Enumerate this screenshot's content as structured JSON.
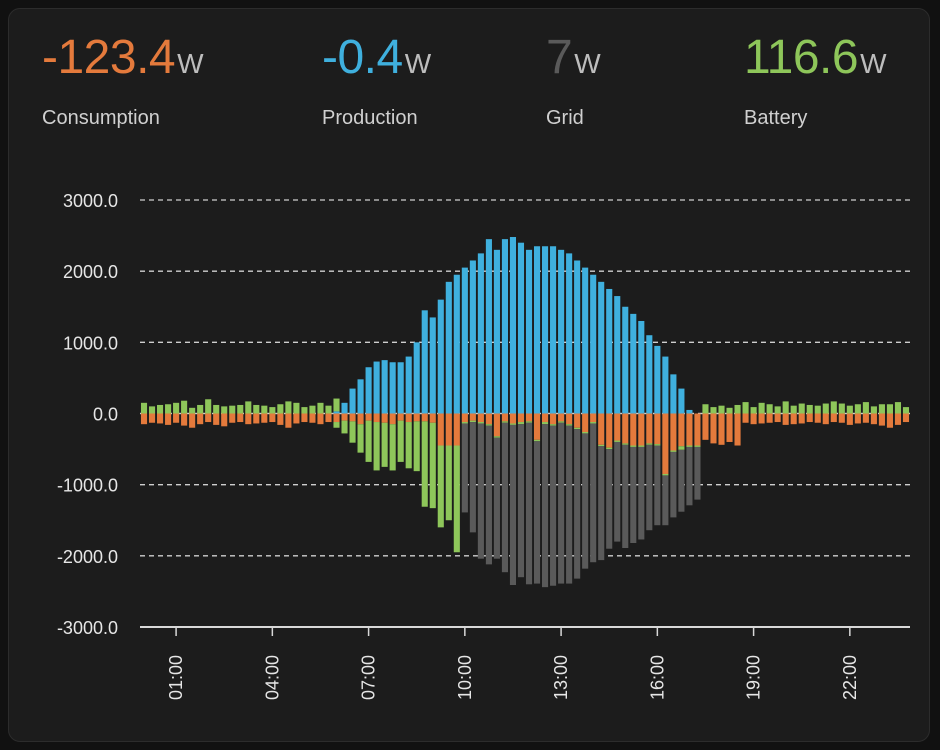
{
  "stats": [
    {
      "key": "consumption",
      "value": "-123.4",
      "unit": "W",
      "label": "Consumption",
      "color": "#e47a3c"
    },
    {
      "key": "production",
      "value": "-0.4",
      "unit": "W",
      "label": "Production",
      "color": "#3fb0de"
    },
    {
      "key": "grid",
      "value": "7",
      "unit": "W",
      "label": "Grid",
      "color": "#5a5a5a"
    },
    {
      "key": "battery",
      "value": "116.6",
      "unit": "W",
      "label": "Battery",
      "color": "#8ec65a"
    }
  ],
  "chart_data": {
    "type": "bar",
    "stacked": true,
    "grid": true,
    "ylim": [
      -3000,
      3000
    ],
    "y_ticks": [
      "3000.0",
      "2000.0",
      "1000.0",
      "0.0",
      "-1000.0",
      "-2000.0",
      "-3000.0"
    ],
    "x_ticks": [
      "01:00",
      "04:00",
      "07:00",
      "10:00",
      "13:00",
      "16:00",
      "19:00",
      "22:00"
    ],
    "x_start_hour": 0,
    "interval_minutes": 15,
    "series": [
      {
        "key": "production",
        "color": "#3fb0de",
        "values": [
          0,
          0,
          0,
          0,
          0,
          0,
          0,
          0,
          0,
          0,
          0,
          0,
          0,
          0,
          0,
          0,
          0,
          0,
          0,
          0,
          0,
          0,
          0,
          0,
          30,
          150,
          350,
          480,
          650,
          730,
          750,
          720,
          720,
          800,
          1000,
          1450,
          1350,
          1600,
          1850,
          1950,
          2050,
          2150,
          2250,
          2450,
          2300,
          2450,
          2480,
          2400,
          2300,
          2350,
          2350,
          2350,
          2300,
          2250,
          2150,
          2050,
          1950,
          1850,
          1750,
          1650,
          1500,
          1400,
          1300,
          1100,
          950,
          800,
          550,
          350,
          50,
          0,
          0,
          0,
          0,
          0,
          0,
          0,
          0,
          0,
          0,
          0,
          0,
          0,
          0,
          0,
          0,
          0,
          0,
          0,
          0,
          0,
          0,
          0,
          0,
          0,
          0,
          0
        ]
      },
      {
        "key": "battery_discharge",
        "color": "#8ec65a",
        "values": [
          150,
          100,
          120,
          130,
          150,
          180,
          80,
          120,
          200,
          120,
          100,
          110,
          120,
          170,
          120,
          110,
          90,
          130,
          170,
          150,
          90,
          110,
          150,
          110,
          180,
          0,
          0,
          0,
          0,
          0,
          0,
          0,
          0,
          0,
          0,
          0,
          0,
          0,
          0,
          0,
          0,
          0,
          0,
          0,
          0,
          0,
          0,
          0,
          0,
          0,
          0,
          0,
          0,
          0,
          0,
          0,
          0,
          0,
          0,
          0,
          0,
          0,
          0,
          0,
          0,
          0,
          0,
          0,
          0,
          0,
          130,
          90,
          110,
          80,
          120,
          160,
          90,
          150,
          130,
          100,
          170,
          110,
          140,
          120,
          110,
          140,
          170,
          140,
          110,
          130,
          160,
          100,
          130,
          130,
          160,
          90
        ]
      },
      {
        "key": "consumption",
        "color": "#e47a3c",
        "values": [
          -150,
          -130,
          -140,
          -160,
          -130,
          -170,
          -200,
          -150,
          -120,
          -160,
          -180,
          -130,
          -120,
          -150,
          -140,
          -130,
          -120,
          -160,
          -200,
          -140,
          -120,
          -130,
          -150,
          -120,
          -120,
          -100,
          -110,
          -150,
          -100,
          -120,
          -130,
          -150,
          -100,
          -120,
          -110,
          -110,
          -130,
          -450,
          -450,
          -450,
          -120,
          -100,
          -120,
          -150,
          -320,
          -110,
          -140,
          -120,
          -110,
          -370,
          -120,
          -150,
          -110,
          -150,
          -200,
          -260,
          -120,
          -440,
          -480,
          -380,
          -420,
          -450,
          -450,
          -420,
          -430,
          -850,
          -520,
          -460,
          -450,
          -450,
          -370,
          -420,
          -440,
          -400,
          -450,
          -130,
          -150,
          -140,
          -130,
          -120,
          -160,
          -150,
          -140,
          -120,
          -130,
          -150,
          -120,
          -130,
          -160,
          -140,
          -130,
          -150,
          -170,
          -200,
          -160,
          -120
        ]
      },
      {
        "key": "battery_charge",
        "color": "#8ec65a",
        "values": [
          0,
          0,
          0,
          0,
          0,
          0,
          0,
          0,
          0,
          0,
          0,
          0,
          0,
          0,
          0,
          0,
          0,
          0,
          0,
          0,
          0,
          0,
          0,
          0,
          -80,
          -180,
          -300,
          -400,
          -580,
          -680,
          -620,
          -650,
          -580,
          -650,
          -700,
          -1200,
          -1200,
          -1150,
          -1050,
          -1500,
          -20,
          -20,
          -20,
          -20,
          -20,
          -20,
          -20,
          -30,
          -20,
          -20,
          -30,
          -20,
          -20,
          -20,
          -20,
          -20,
          -20,
          -20,
          -20,
          -20,
          -20,
          -20,
          -20,
          -20,
          -20,
          -20,
          -20,
          -50,
          -20,
          -20,
          0,
          0,
          0,
          0,
          0,
          0,
          0,
          0,
          0,
          0,
          0,
          0,
          0,
          0,
          0,
          0,
          0,
          0,
          0,
          0,
          0,
          0,
          0,
          0,
          0,
          0
        ]
      },
      {
        "key": "grid",
        "color": "#5a5a5a",
        "values": [
          0,
          0,
          0,
          0,
          0,
          0,
          0,
          0,
          0,
          0,
          0,
          0,
          0,
          0,
          0,
          0,
          0,
          0,
          0,
          0,
          0,
          0,
          0,
          0,
          0,
          0,
          0,
          0,
          0,
          0,
          0,
          0,
          0,
          0,
          0,
          0,
          0,
          0,
          0,
          0,
          -1250,
          -1550,
          -1900,
          -1950,
          -1700,
          -2100,
          -2250,
          -2150,
          -2270,
          -2000,
          -2290,
          -2250,
          -2260,
          -2220,
          -2100,
          -1900,
          -1950,
          -1600,
          -1400,
          -1400,
          -1450,
          -1350,
          -1300,
          -1200,
          -1120,
          -700,
          -920,
          -870,
          -820,
          -740,
          0,
          0,
          0,
          0,
          0,
          0,
          0,
          0,
          0,
          0,
          0,
          0,
          0,
          0,
          0,
          0,
          0,
          0,
          0,
          0,
          0,
          0,
          0,
          0,
          0,
          0
        ]
      }
    ]
  }
}
